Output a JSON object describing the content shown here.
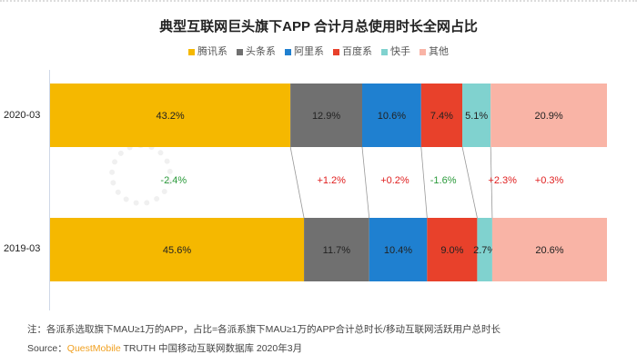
{
  "chart_data": {
    "type": "bar",
    "orientation": "horizontal-stacked-100",
    "title": "典型互联网巨头旗下APP 合计月总使用时长全网占比",
    "series_names": [
      "腾讯系",
      "头条系",
      "阿里系",
      "百度系",
      "快手",
      "其他"
    ],
    "colors": [
      "#f5b800",
      "#707070",
      "#1f80d0",
      "#e8412b",
      "#80d2cf",
      "#f9b4a6"
    ],
    "categories": [
      "2020-03",
      "2019-03"
    ],
    "values": [
      [
        43.2,
        12.9,
        10.6,
        7.4,
        5.1,
        20.9
      ],
      [
        45.6,
        11.7,
        10.4,
        9.0,
        2.7,
        20.6
      ]
    ],
    "value_labels": [
      [
        "43.2%",
        "12.9%",
        "10.6%",
        "7.4%",
        "5.1%",
        "20.9%"
      ],
      [
        "45.6%",
        "11.7%",
        "10.4%",
        "9.0%",
        "2.7%",
        "20.6%"
      ]
    ],
    "changes": [
      "-2.4%",
      "+1.2%",
      "+0.2%",
      "-1.6%",
      "+2.3%",
      "+0.3%"
    ],
    "legend_position": "top"
  },
  "watermark": "QUEST MOBILE",
  "footer": {
    "note": "注：各派系选取旗下MAU≥1万的APP，占比=各派系旗下MAU≥1万的APP合计总时长/移动互联网活跃用户总时长",
    "source_label": "Source：",
    "source_brand": "QuestMobile",
    "source_rest": " TRUTH 中国移动互联网数据库 2020年3月"
  }
}
